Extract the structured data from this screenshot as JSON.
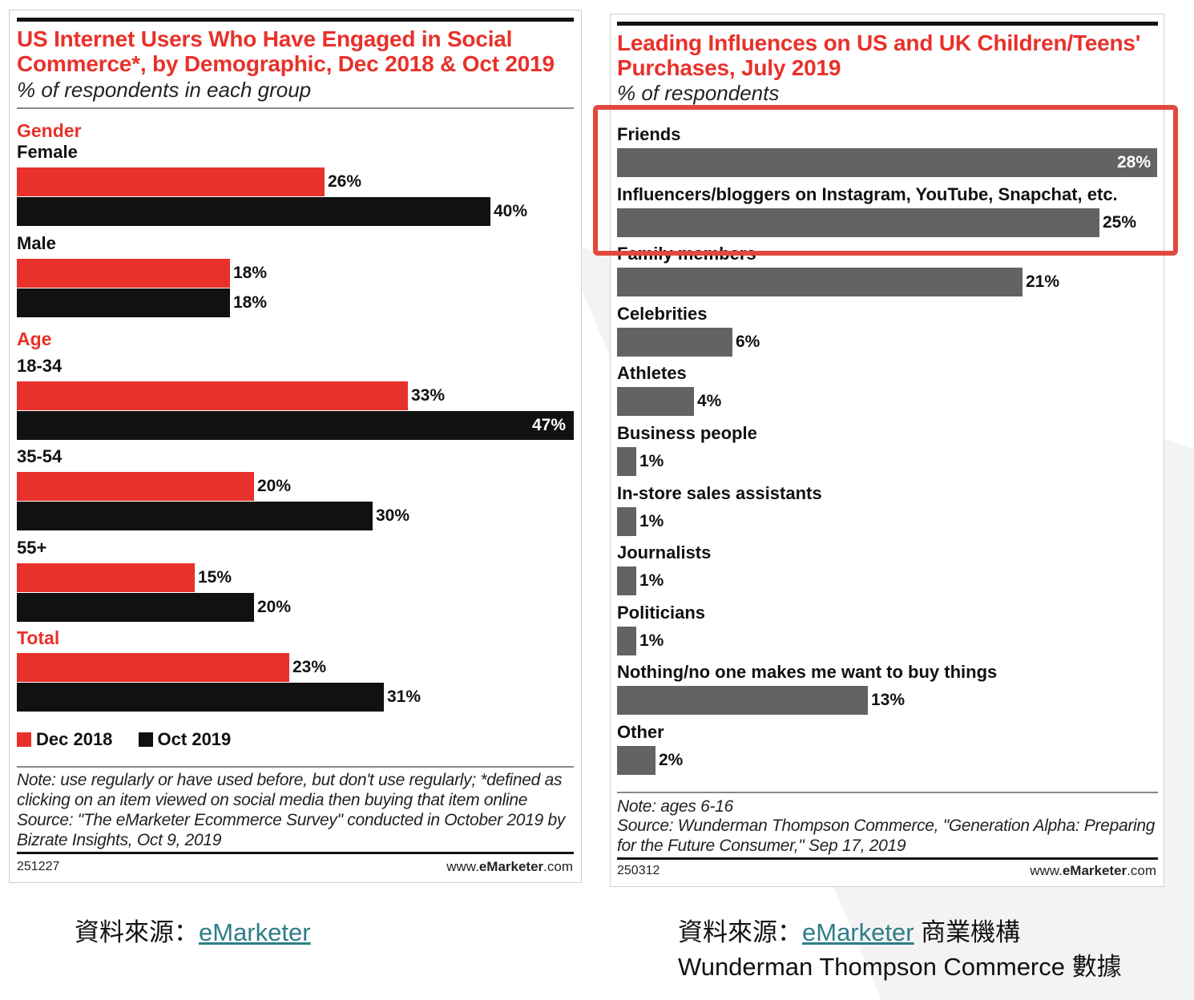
{
  "left_chart": {
    "title": "US Internet Users Who Have Engaged in Social Commerce*, by Demographic, Dec 2018 & Oct 2019",
    "subtitle": "% of respondents in each group",
    "note": "Note: use regularly or have used before, but don't use regularly; *defined as clicking on an item viewed on social media then buying that item online",
    "source": "Source: \"The eMarketer Ecommerce Survey\" conducted in October 2019 by Bizrate Insights, Oct 9, 2019",
    "chart_id": "251227",
    "url_prefix": "www.",
    "url_brand": "eMarketer",
    "url_suffix": ".com"
  },
  "right_chart": {
    "title": "Leading Influences on US and UK Children/Teens' Purchases, July 2019",
    "subtitle": "% of respondents",
    "note": "Note: ages 6-16",
    "source": "Source: Wunderman Thompson Commerce, \"Generation Alpha: Preparing for the Future Consumer,\" Sep 17, 2019",
    "chart_id": "250312",
    "url_prefix": "www.",
    "url_brand": "eMarketer",
    "url_suffix": ".com"
  },
  "captions": {
    "left_prefix": "資料來源：",
    "left_link": "eMarketer",
    "right_prefix": "資料來源：",
    "right_link": "eMarketer",
    "right_suffix": " 商業機構",
    "right_line2": "Wunderman Thompson Commerce 數據"
  },
  "colors": {
    "red": "#e8312a",
    "black": "#111111",
    "gray_bar": "#636363",
    "highlight": "#e0493e",
    "link": "#2e7d86"
  },
  "chart_data": [
    {
      "type": "bar",
      "orientation": "horizontal",
      "title": "US Internet Users Who Have Engaged in Social Commerce*, by Demographic, Dec 2018 & Oct 2019",
      "subtitle": "% of respondents in each group",
      "groups": [
        {
          "name": "Gender",
          "rows": [
            {
              "label": "Female",
              "values": [
                26,
                40
              ]
            },
            {
              "label": "Male",
              "values": [
                18,
                18
              ]
            }
          ]
        },
        {
          "name": "Age",
          "rows": [
            {
              "label": "18-34",
              "values": [
                33,
                47
              ]
            },
            {
              "label": "35-54",
              "values": [
                20,
                30
              ]
            },
            {
              "label": "55+",
              "values": [
                15,
                20
              ]
            }
          ]
        },
        {
          "name": "Total",
          "rows": [
            {
              "label": "",
              "values": [
                23,
                31
              ]
            }
          ]
        }
      ],
      "series": [
        {
          "name": "Dec 2018",
          "color": "#e8312a"
        },
        {
          "name": "Oct 2019",
          "color": "#111111"
        }
      ],
      "unit": "%",
      "legend": "bottom-left"
    },
    {
      "type": "bar",
      "orientation": "horizontal",
      "title": "Leading Influences on US and UK Children/Teens' Purchases, July 2019",
      "subtitle": "% of respondents",
      "categories": [
        "Friends",
        "Influencers/bloggers on Instagram, YouTube, Snapchat, etc.",
        "Family members",
        "Celebrities",
        "Athletes",
        "Business people",
        "In-store sales assistants",
        "Journalists",
        "Politicians",
        "Nothing/no one makes me want to buy things",
        "Other"
      ],
      "values": [
        28,
        25,
        21,
        6,
        4,
        1,
        1,
        1,
        1,
        13,
        2
      ],
      "unit": "%",
      "highlighted": [
        "Friends",
        "Influencers/bloggers on Instagram, YouTube, Snapchat, etc."
      ]
    }
  ]
}
